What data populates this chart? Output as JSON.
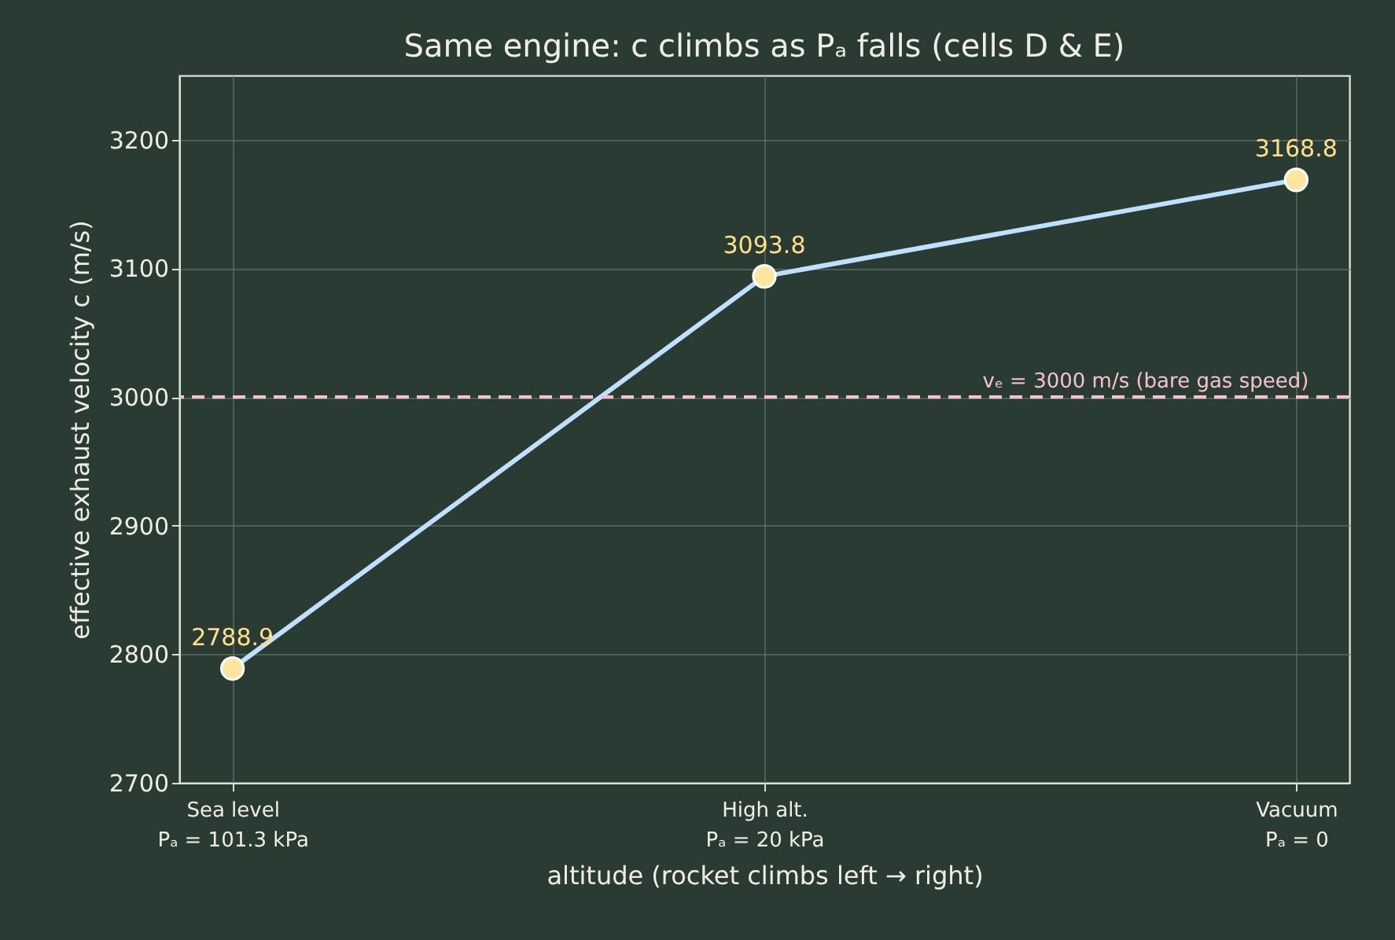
{
  "chart_data": {
    "type": "line",
    "title": "Same engine: c climbs as Pₐ falls (cells D & E)",
    "xlabel": "altitude (rocket climbs left → right)",
    "ylabel": "effective exhaust velocity c  (m/s)",
    "categories": [
      "Sea level\nPₐ = 101.3 kPa",
      "High alt.\nPₐ = 20 kPa",
      "Vacuum\nPₐ = 0"
    ],
    "series": [
      {
        "color": "#bfe0ff",
        "values": [
          2788.9,
          3093.8,
          3168.8
        ]
      }
    ],
    "ylim": [
      2700,
      3250
    ],
    "yticks": [
      2700,
      2800,
      2900,
      3000,
      3100,
      3200
    ],
    "grid": true,
    "marker": "circle",
    "line_style": "solid",
    "data_labels": true,
    "ref_lines": [
      {
        "axis": "y",
        "value": 3000,
        "label": "vₑ = 3000 m/s (bare gas speed)",
        "color": "#f4c2cf",
        "line_style": "dashed"
      }
    ]
  }
}
